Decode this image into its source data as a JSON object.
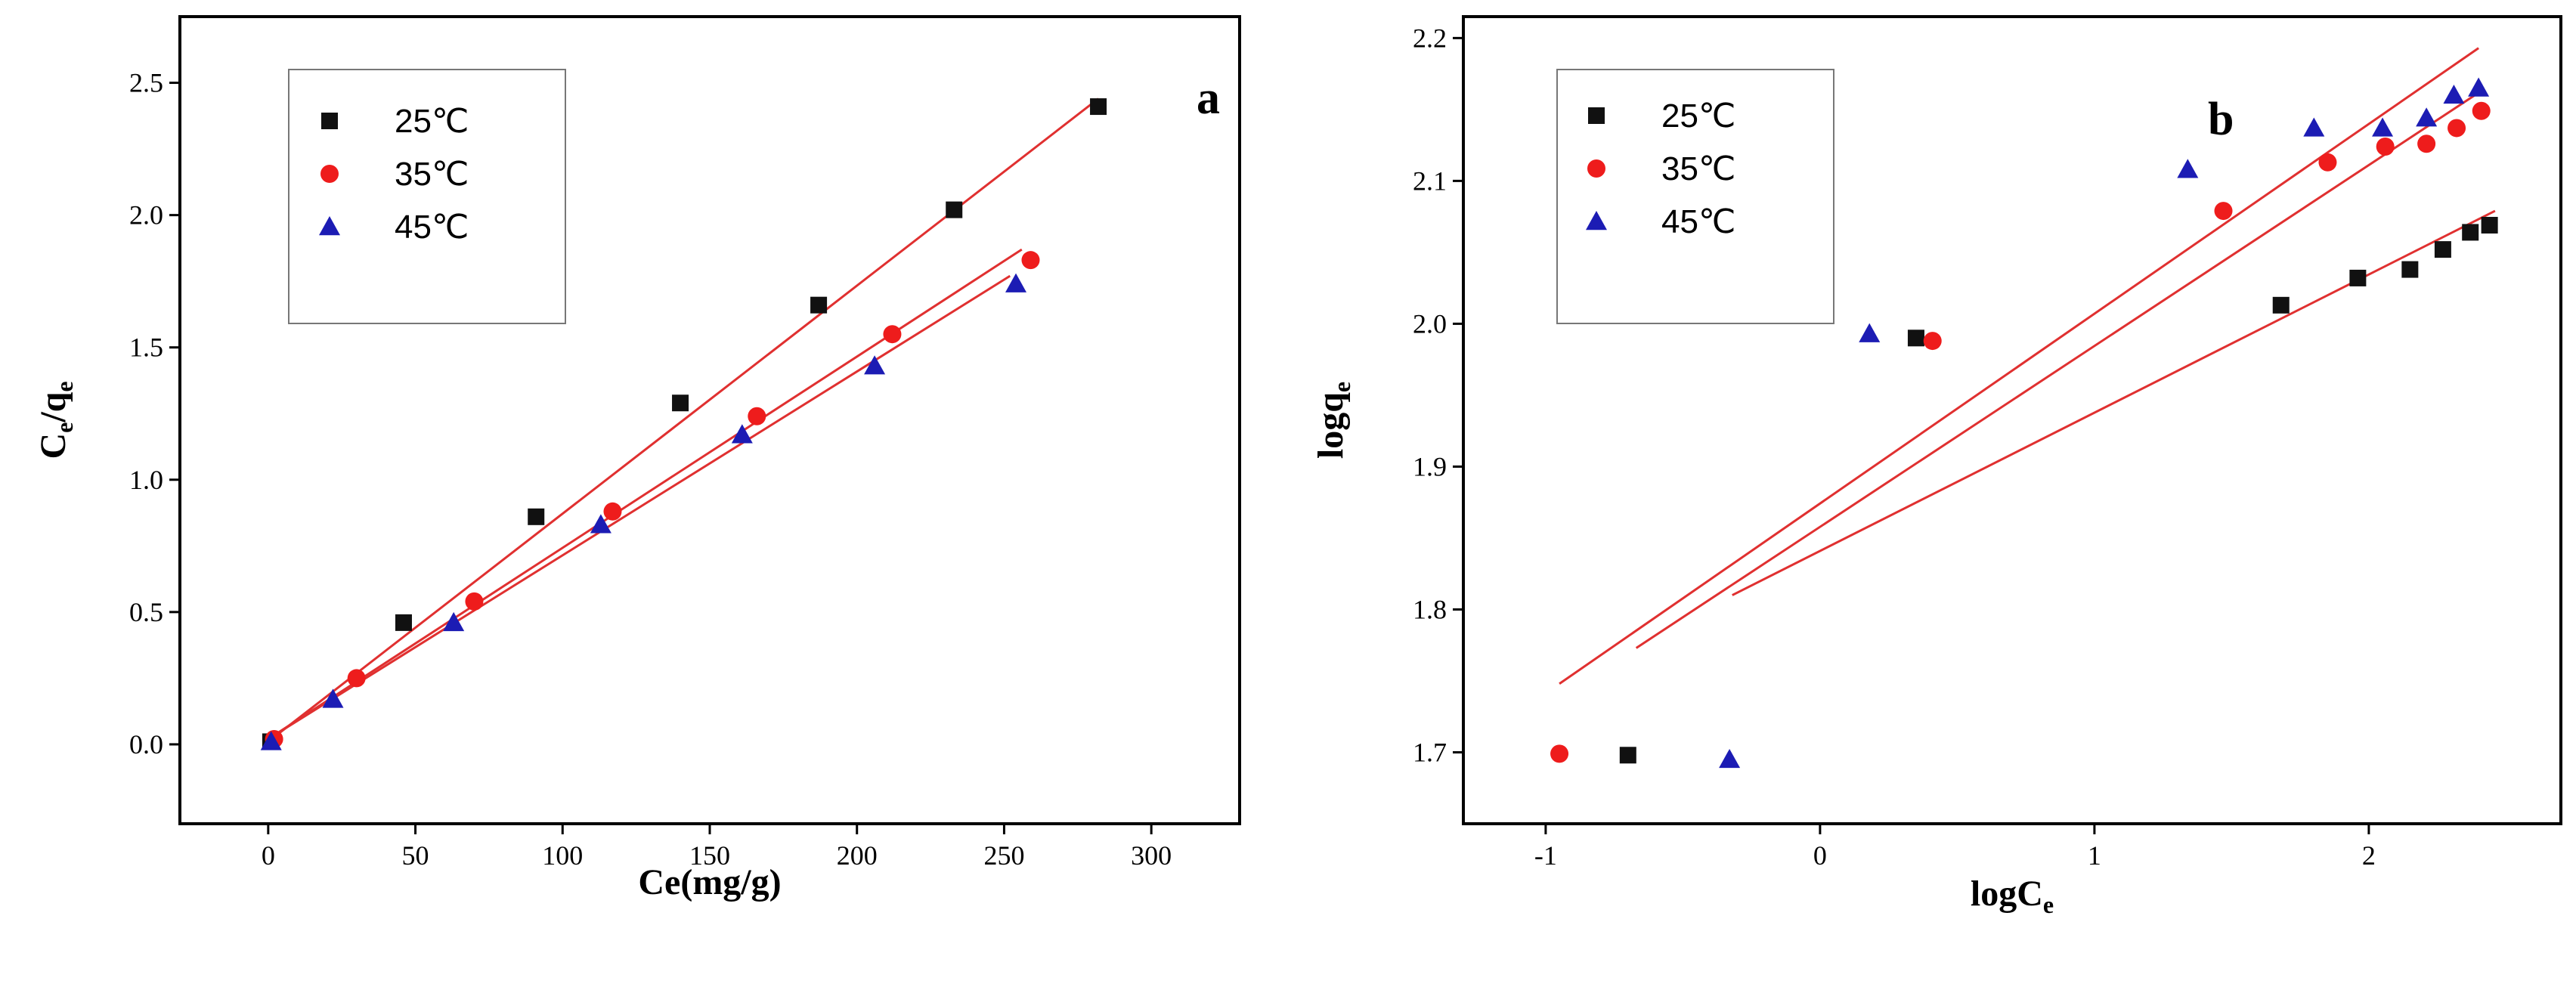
{
  "chart_data": [
    {
      "type": "scatter",
      "panel_label": "a",
      "xlabel": "Ce(mg/g)",
      "ylabel_main": "C",
      "ylabel_sub1": "e",
      "ylabel_mid": "/q",
      "ylabel_sub2": "e",
      "xlim": [
        -30,
        330
      ],
      "ylim": [
        -0.3,
        2.75
      ],
      "xticks": [
        0,
        50,
        100,
        150,
        200,
        250,
        300
      ],
      "xtick_labels": [
        "0",
        "50",
        "100",
        "150",
        "200",
        "250",
        "300"
      ],
      "yticks": [
        0.0,
        0.5,
        1.0,
        1.5,
        2.0,
        2.5
      ],
      "ytick_labels": [
        "0.0",
        "0.5",
        "1.0",
        "1.5",
        "2.0",
        "2.5"
      ],
      "legend_position": "top-left",
      "fit_color": "#e03030",
      "series": [
        {
          "name": "25℃",
          "marker": "square",
          "color": "#111111",
          "x": [
            0.8,
            46,
            91,
            140,
            187,
            233,
            282
          ],
          "y": [
            0.01,
            0.46,
            0.86,
            1.29,
            1.66,
            2.02,
            2.41
          ],
          "fit": [
            [
              0,
              0.01
            ],
            [
              282,
              2.44
            ]
          ]
        },
        {
          "name": "35℃",
          "marker": "circle",
          "color": "#ee1c1c",
          "x": [
            2,
            30,
            70,
            117,
            166,
            212,
            259
          ],
          "y": [
            0.02,
            0.25,
            0.54,
            0.88,
            1.24,
            1.55,
            1.83
          ],
          "fit": [
            [
              0,
              0.02
            ],
            [
              256,
              1.87
            ]
          ]
        },
        {
          "name": "45℃",
          "marker": "triangle",
          "color": "#1c1cb4",
          "x": [
            1,
            22,
            63,
            113,
            161,
            206,
            254
          ],
          "y": [
            0.01,
            0.17,
            0.46,
            0.83,
            1.17,
            1.43,
            1.74
          ],
          "fit": [
            [
              0,
              0.02
            ],
            [
              252,
              1.77
            ]
          ]
        }
      ]
    },
    {
      "type": "scatter",
      "panel_label": "b",
      "xlabel_main": "logC",
      "xlabel_sub": "e",
      "ylabel_main": "logq",
      "ylabel_sub": "e",
      "xlim": [
        -1.3,
        2.7
      ],
      "ylim": [
        1.65,
        2.215
      ],
      "xticks": [
        -1,
        0,
        1,
        2
      ],
      "xtick_labels": [
        "-1",
        "0",
        "1",
        "2"
      ],
      "yticks": [
        1.7,
        1.8,
        1.9,
        2.0,
        2.1,
        2.2
      ],
      "ytick_labels": [
        "1.7",
        "1.8",
        "1.9",
        "2.0",
        "2.1",
        "2.2"
      ],
      "legend_position": "top-left",
      "fit_color": "#e03030",
      "series": [
        {
          "name": "25℃",
          "marker": "square",
          "color": "#111111",
          "x": [
            -0.7,
            0.35,
            1.68,
            1.96,
            2.15,
            2.27,
            2.37,
            2.44
          ],
          "y": [
            1.698,
            1.99,
            2.013,
            2.032,
            2.038,
            2.052,
            2.064,
            2.069
          ],
          "fit": [
            [
              -0.32,
              1.81
            ],
            [
              2.46,
              2.079
            ]
          ]
        },
        {
          "name": "35℃",
          "marker": "circle",
          "color": "#ee1c1c",
          "x": [
            -0.95,
            0.41,
            1.47,
            1.85,
            2.06,
            2.21,
            2.32,
            2.41
          ],
          "y": [
            1.699,
            1.988,
            2.079,
            2.113,
            2.124,
            2.126,
            2.137,
            2.149
          ],
          "fit": [
            [
              -0.67,
              1.773
            ],
            [
              2.41,
              2.163
            ]
          ]
        },
        {
          "name": "45℃",
          "marker": "triangle",
          "color": "#1c1cb4",
          "x": [
            -0.33,
            0.18,
            1.34,
            1.8,
            2.05,
            2.21,
            2.31,
            2.4
          ],
          "y": [
            1.695,
            1.993,
            2.108,
            2.137,
            2.137,
            2.144,
            2.16,
            2.165
          ],
          "fit": [
            [
              -0.95,
              1.748
            ],
            [
              2.4,
              2.193
            ]
          ]
        }
      ]
    }
  ]
}
